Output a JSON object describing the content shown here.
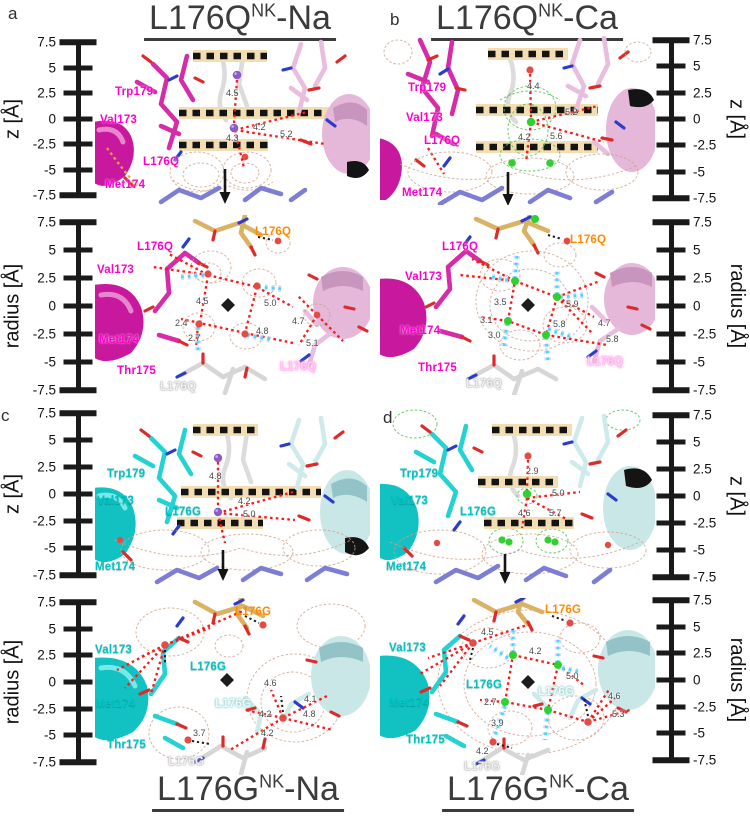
{
  "axis": {
    "z_label": "z [Å]",
    "radius_label": "radius [Å]",
    "ticks": [
      "7.5",
      "5",
      "2.5",
      "0",
      "-2.5",
      "-5",
      "-7.5"
    ]
  },
  "panels": {
    "a": {
      "letter": "a",
      "title": {
        "base": "L176Q",
        "sup": "NK",
        "suffix": "-Na"
      },
      "z": {
        "residues": {
          "trp": "Trp179",
          "val": "Val173",
          "own": "L176Q",
          "met": "Met174"
        },
        "distances": [
          "4.5",
          "4.2",
          "5.2",
          "4.3"
        ]
      },
      "r": {
        "residues": {
          "own": "L176Q",
          "val": "Val173",
          "met": "Met174",
          "thr": "Thr175",
          "orange": "L176Q",
          "pink": "L176Q",
          "gray": "L176Q"
        },
        "distances": [
          "4.5",
          "5.0",
          "2.4",
          "2.7",
          "4.8",
          "4.7",
          "5.1"
        ]
      }
    },
    "b": {
      "letter": "b",
      "title": {
        "base": "L176Q",
        "sup": "NK",
        "suffix": "-Ca"
      },
      "z": {
        "residues": {
          "trp": "Trp179",
          "val": "Val173",
          "own": "L176Q",
          "met": "Met174"
        },
        "distances": [
          "4.4",
          "5.2",
          "5.6",
          "4.2"
        ]
      },
      "r": {
        "residues": {
          "own": "L176Q",
          "val": "Val173",
          "met": "Met174",
          "thr": "Thr175",
          "orange": "L176Q",
          "pink": "L176Q",
          "gray": "L176Q"
        },
        "distances": [
          "3.5",
          "5.9",
          "5.8",
          "4.7",
          "5.8",
          "3.1",
          "3.0"
        ]
      }
    },
    "c": {
      "letter": "c",
      "title": {
        "base": "L176G",
        "sup": "NK",
        "suffix": "-Na"
      },
      "z": {
        "residues": {
          "trp": "Trp179",
          "val": "Val173",
          "own": "L176G",
          "met": "Met174"
        },
        "distances": [
          "4.8",
          "4.2",
          "5.0"
        ]
      },
      "r": {
        "residues": {
          "own": "L176G",
          "val": "Val173",
          "met": "Met174",
          "thr": "Thr175",
          "orange": "L176G",
          "pale": "L176G",
          "gray": "L176G"
        },
        "distances": [
          "4.6",
          "4.1",
          "4.2",
          "4.8",
          "4.2",
          "3.7"
        ]
      }
    },
    "d": {
      "letter": "d",
      "title": {
        "base": "L176G",
        "sup": "NK",
        "suffix": "-Ca"
      },
      "z": {
        "residues": {
          "trp": "Trp179",
          "val": "Val173",
          "own": "L176G",
          "met": "Met174"
        },
        "distances": [
          "2.9",
          "5.0",
          "4.6",
          "5.7"
        ]
      },
      "r": {
        "residues": {
          "own": "L176G",
          "val": "Val173",
          "met": "Met174",
          "thr": "Thr175",
          "orange": "L176G",
          "pale": "L176G",
          "gray": "L176G"
        },
        "distances": [
          "4.5",
          "4.2",
          "5.0",
          "2.7",
          "4.6",
          "5.3",
          "3.9",
          "4.2"
        ]
      }
    }
  },
  "ions": {
    "na": {
      "name": "sodium ion",
      "color": "#8b5cc6"
    },
    "ca": {
      "name": "calcium ion",
      "color": "#2fd02f"
    },
    "water": {
      "name": "water",
      "color": "#e34b43"
    }
  },
  "colors": {
    "red_dash": "#ff1616",
    "cyan_dash": "#3edcff",
    "mesh_brown": "#cda28a",
    "mesh_green": "#4ec44e",
    "membrane_glow": "#f3ddb2",
    "magenta_label": "#ff00cc",
    "cyan_label": "#00c4c4",
    "orange_label": "#ff8a00",
    "title": "#3b3b3b"
  }
}
